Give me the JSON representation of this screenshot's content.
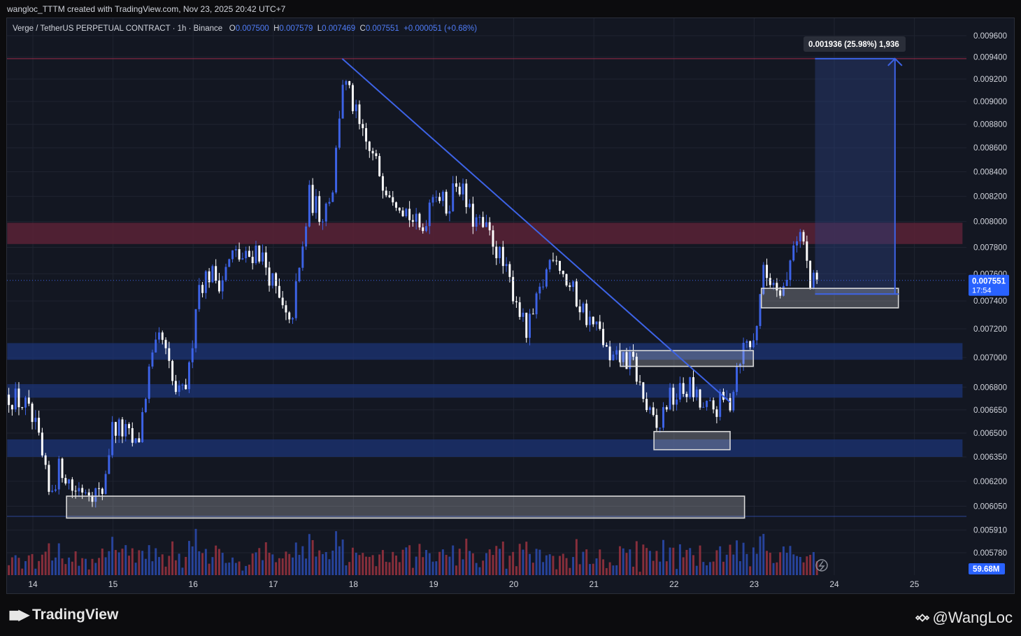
{
  "caption": "wangloc_TTTM created with TradingView.com, Nov 23, 2025 20:42 UTC+7",
  "legend": {
    "symbol": "Verge / TetherUS PERPETUAL CONTRACT · 1h · Binance",
    "o_label": "O",
    "o_value": "0.007500",
    "h_label": "H",
    "h_value": "0.007579",
    "l_label": "L",
    "l_value": "0.007469",
    "c_label": "C",
    "c_value": "0.007551",
    "change": "+0.000051 (+0.68%)"
  },
  "footer": {
    "brand": "TradingView",
    "watermark": "@WangLoc"
  },
  "colors": {
    "background": "#131722",
    "bull": "#3d63e6",
    "bear": "#ffffff",
    "resistance_zone": "#5b2236",
    "support_zone": "#1b3270",
    "trendline": "#3d63e6",
    "box": "#d8d8d8"
  },
  "chart_data": {
    "type": "candlestick",
    "x_tick_labels": [
      "14",
      "15",
      "16",
      "17",
      "18",
      "19",
      "20",
      "21",
      "22",
      "23",
      "24",
      "25"
    ],
    "y_tick_labels": [
      "0.009600",
      "0.009400",
      "0.009200",
      "0.009000",
      "0.008800",
      "0.008600",
      "0.008400",
      "0.008200",
      "0.008000",
      "0.007800",
      "0.007600",
      "0.007400",
      "0.007200",
      "0.007000",
      "0.006800",
      "0.006650",
      "0.006500",
      "0.006350",
      "0.006200",
      "0.006050",
      "0.005910",
      "0.005780"
    ],
    "y_ticks": [
      0.0096,
      0.0094,
      0.0092,
      0.009,
      0.0088,
      0.0086,
      0.0084,
      0.0082,
      0.008,
      0.0078,
      0.0076,
      0.0074,
      0.0072,
      0.007,
      0.0068,
      0.00665,
      0.0065,
      0.00635,
      0.0062,
      0.00605,
      0.00591,
      0.00578
    ],
    "scale": "log",
    "y_range": [
      0.00574,
      0.00972
    ],
    "x_range_days": [
      13.68,
      25.6
    ],
    "last_price": "0.007551",
    "countdown": "17:54",
    "volume_label": "59.68M",
    "measure": {
      "label": "0.001936 (25.98%) 1,936",
      "from_price": 0.00745,
      "to_price": 0.009386,
      "from_day": 23.76,
      "to_day": 24.76
    },
    "horizontal_lines": [
      0.009386,
      0.00599
    ],
    "zones": [
      {
        "kind": "resistance",
        "low": 0.007825,
        "high": 0.00799,
        "from_day": 13.68,
        "to_day": 25.6
      },
      {
        "kind": "support",
        "low": 0.006985,
        "high": 0.0071,
        "from_day": 13.68,
        "to_day": 25.6
      },
      {
        "kind": "support",
        "low": 0.00673,
        "high": 0.00682,
        "from_day": 13.68,
        "to_day": 25.6
      },
      {
        "kind": "support",
        "low": 0.00635,
        "high": 0.00646,
        "from_day": 13.68,
        "to_day": 25.6
      }
    ],
    "boxes": [
      {
        "low": 0.00598,
        "high": 0.00611,
        "from_day": 14.42,
        "to_day": 22.88
      },
      {
        "low": 0.006395,
        "high": 0.00651,
        "from_day": 21.75,
        "to_day": 22.7
      },
      {
        "low": 0.00694,
        "high": 0.007048,
        "from_day": 21.33,
        "to_day": 22.99
      },
      {
        "low": 0.00735,
        "high": 0.007492,
        "from_day": 23.09,
        "to_day": 24.8
      }
    ],
    "trendline": {
      "from_day": 17.86,
      "from_price": 0.009386,
      "to_day": 22.7,
      "to_price": 0.0067
    },
    "price_path": [
      [
        13.7,
        0.00675
      ],
      [
        13.9,
        0.00668
      ],
      [
        14.05,
        0.0065
      ],
      [
        14.2,
        0.00612
      ],
      [
        14.35,
        0.0063
      ],
      [
        14.5,
        0.00615
      ],
      [
        14.7,
        0.00617
      ],
      [
        14.85,
        0.0061
      ],
      [
        15.0,
        0.00655
      ],
      [
        15.15,
        0.0065
      ],
      [
        15.3,
        0.0064
      ],
      [
        15.45,
        0.0069
      ],
      [
        15.6,
        0.00715
      ],
      [
        15.75,
        0.0068
      ],
      [
        15.85,
        0.00672
      ],
      [
        15.95,
        0.0069
      ],
      [
        16.05,
        0.0075
      ],
      [
        16.2,
        0.0076
      ],
      [
        16.35,
        0.00755
      ],
      [
        16.5,
        0.00775
      ],
      [
        16.65,
        0.0077
      ],
      [
        16.8,
        0.0078
      ],
      [
        16.95,
        0.0076
      ],
      [
        17.1,
        0.00735
      ],
      [
        17.2,
        0.0072
      ],
      [
        17.35,
        0.0077
      ],
      [
        17.45,
        0.0082
      ],
      [
        17.6,
        0.00805
      ],
      [
        17.75,
        0.0083
      ],
      [
        17.86,
        0.0092
      ],
      [
        17.98,
        0.009
      ],
      [
        18.1,
        0.0087
      ],
      [
        18.25,
        0.0085
      ],
      [
        18.4,
        0.0083
      ],
      [
        18.55,
        0.0082
      ],
      [
        18.7,
        0.00805
      ],
      [
        18.85,
        0.0079
      ],
      [
        19.0,
        0.0083
      ],
      [
        19.15,
        0.0081
      ],
      [
        19.3,
        0.00835
      ],
      [
        19.45,
        0.00805
      ],
      [
        19.6,
        0.00795
      ],
      [
        19.75,
        0.00785
      ],
      [
        19.9,
        0.0076
      ],
      [
        20.05,
        0.0074
      ],
      [
        20.15,
        0.00715
      ],
      [
        20.25,
        0.0073
      ],
      [
        20.4,
        0.0076
      ],
      [
        20.5,
        0.0078
      ],
      [
        20.65,
        0.00755
      ],
      [
        20.8,
        0.0074
      ],
      [
        20.95,
        0.00725
      ],
      [
        21.1,
        0.00715
      ],
      [
        21.2,
        0.00695
      ],
      [
        21.35,
        0.007
      ],
      [
        21.5,
        0.00695
      ],
      [
        21.6,
        0.00675
      ],
      [
        21.7,
        0.0066
      ],
      [
        21.8,
        0.0065
      ],
      [
        21.9,
        0.0067
      ],
      [
        22.05,
        0.00675
      ],
      [
        22.2,
        0.0068
      ],
      [
        22.35,
        0.00665
      ],
      [
        22.5,
        0.00665
      ],
      [
        22.6,
        0.0067
      ],
      [
        22.7,
        0.0067
      ],
      [
        22.8,
        0.007
      ],
      [
        22.9,
        0.0071
      ],
      [
        23.0,
        0.0071
      ],
      [
        23.1,
        0.0076
      ],
      [
        23.25,
        0.00755
      ],
      [
        23.4,
        0.0075
      ],
      [
        23.5,
        0.0079
      ],
      [
        23.6,
        0.0079
      ],
      [
        23.7,
        0.0075
      ],
      [
        23.8,
        0.00755
      ]
    ],
    "candles_per_day": 24
  }
}
